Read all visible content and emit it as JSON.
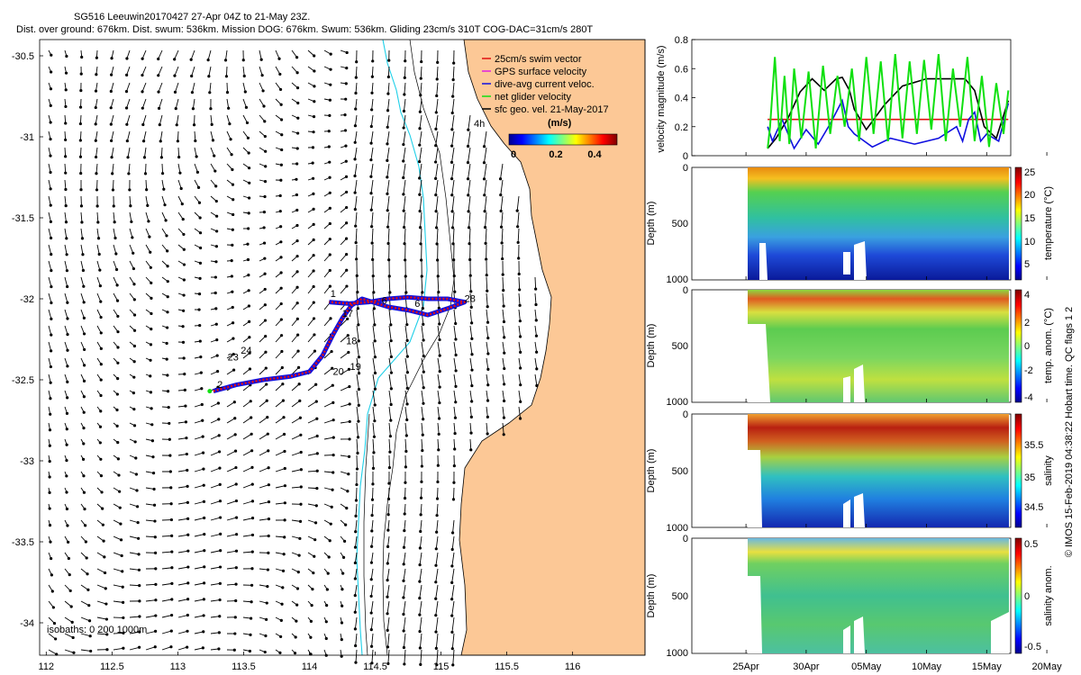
{
  "header": {
    "title": "SG516 Leeuwin20170427 27-Apr 04Z to 21-May 23Z.",
    "subtitle": "Dist. over ground: 676km. Dist. swum: 536km. Mission DOG: 676km. Swum: 536km. Gliding 23cm/s 310T COG-DAC=31cm/s 280T"
  },
  "credit": "© IMOS 15-Feb-2019 04:38:22 Hobart time. QC flags 1  2",
  "colors": {
    "land": "#fcc896",
    "swim_vector": "#e01010",
    "gps_velocity": "#e020e0",
    "dac": "#1010e0",
    "net_velocity": "#10e010",
    "isobath": "#1ecfe8",
    "coast": "#000000"
  },
  "chart_data": [
    {
      "id": "map",
      "type": "scatter",
      "title": "",
      "xlim": [
        111.95,
        116.55
      ],
      "ylim": [
        -34.2,
        -30.4
      ],
      "x_ticks": [
        "112",
        "112.5",
        "113",
        "113.5",
        "114",
        "114.5",
        "115",
        "115.5",
        "116"
      ],
      "y_ticks": [
        "-30.5",
        "-31",
        "-31.5",
        "-32",
        "-32.5",
        "-33",
        "-33.5",
        "-34"
      ],
      "legend": [
        "25cm/s swim vector",
        "GPS surface velocity",
        "dive-avg current veloc.",
        "net glider velocity",
        "sfc geo. vel. 21-May-2017"
      ],
      "colorbar": {
        "label": "(m/s)",
        "range": [
          0,
          0.5
        ],
        "tick_labels": [
          "0",
          "0.2",
          "0.4"
        ]
      },
      "annotations": [
        "4h",
        "isobaths: 0   200  1000m"
      ],
      "day_labels": [
        {
          "t": "17",
          "lon": 114.29,
          "lat": -32.11
        },
        {
          "t": "18",
          "lon": 114.32,
          "lat": -32.28
        },
        {
          "t": "19",
          "lon": 114.35,
          "lat": -32.44
        },
        {
          "t": "20",
          "lon": 114.22,
          "lat": -32.47
        },
        {
          "t": "23",
          "lon": 113.42,
          "lat": -32.38
        },
        {
          "t": "24",
          "lon": 113.52,
          "lat": -32.34
        },
        {
          "t": "28",
          "lon": 115.22,
          "lat": -32.02
        },
        {
          "t": "6",
          "lon": 114.82,
          "lat": -32.05
        },
        {
          "t": "6",
          "lon": 114.57,
          "lat": -32.03
        },
        {
          "t": "1",
          "lon": 114.18,
          "lat": -31.99
        },
        {
          "t": "2",
          "lon": 113.32,
          "lat": -32.55
        }
      ],
      "track": {
        "lon": [
          113.27,
          113.45,
          113.65,
          113.85,
          114.0,
          114.1,
          114.18,
          114.25,
          114.32,
          114.4,
          114.48,
          114.6,
          114.75,
          114.9,
          115.05,
          115.18,
          115.05,
          114.9,
          114.75,
          114.6,
          114.45,
          114.3,
          114.15
        ],
        "lat": [
          -32.57,
          -32.53,
          -32.5,
          -32.48,
          -32.45,
          -32.35,
          -32.22,
          -32.12,
          -32.04,
          -32.0,
          -32.02,
          -32.05,
          -32.07,
          -32.1,
          -32.06,
          -32.02,
          -32.0,
          -32.0,
          -31.99,
          -32.0,
          -32.02,
          -32.03,
          -32.02
        ]
      }
    },
    {
      "id": "velocity",
      "type": "line",
      "ylabel": "velocity magnitude (m/s)",
      "ylim": [
        0,
        0.8
      ],
      "y_ticks": [
        "0",
        "0.2",
        "0.4",
        "0.6",
        "0.8"
      ],
      "x_ticks": [
        "25Apr",
        "30Apr",
        "05May",
        "10May",
        "15May",
        "20May"
      ],
      "xlim": [
        20.5,
        47.0
      ],
      "series": [
        {
          "name": "25cm/s swim vector",
          "color": "#e01010",
          "x": [
            26.8,
            46.8
          ],
          "y": [
            0.25,
            0.25
          ]
        },
        {
          "name": "sfc geo. vel. 21-May-2017",
          "color": "#000000",
          "x": [
            26.8,
            27.5,
            28.5,
            29.5,
            30.5,
            31.5,
            32.5,
            33.0,
            33.6,
            34.0,
            35.0,
            36.5,
            38.0,
            40.0,
            42.0,
            43.2,
            44.0,
            44.8,
            45.8,
            46.8
          ],
          "y": [
            0.05,
            0.12,
            0.26,
            0.44,
            0.53,
            0.45,
            0.53,
            0.54,
            0.45,
            0.32,
            0.18,
            0.35,
            0.48,
            0.53,
            0.53,
            0.53,
            0.45,
            0.2,
            0.12,
            0.38
          ]
        },
        {
          "name": "dive-avg current veloc.",
          "color": "#1010e0",
          "x": [
            26.8,
            27.2,
            28.0,
            29.0,
            30.0,
            31.0,
            32.0,
            33.0,
            33.5,
            34.0,
            34.5,
            35.5,
            37.0,
            39.0,
            41.0,
            42.5,
            43.0,
            43.5,
            44.0,
            44.5,
            45.0,
            46.0,
            46.8
          ],
          "y": [
            0.2,
            0.1,
            0.25,
            0.05,
            0.18,
            0.08,
            0.22,
            0.38,
            0.2,
            0.15,
            0.12,
            0.06,
            0.12,
            0.08,
            0.12,
            0.2,
            0.1,
            0.25,
            0.3,
            0.1,
            0.15,
            0.1,
            0.36
          ]
        },
        {
          "name": "net glider velocity",
          "color": "#10e010",
          "x": [
            26.8,
            27.0,
            27.4,
            27.8,
            28.2,
            28.6,
            29.0,
            29.6,
            30.2,
            30.8,
            31.4,
            32.0,
            32.6,
            33.2,
            33.8,
            34.4,
            35.0,
            35.6,
            36.2,
            36.8,
            37.4,
            38.0,
            38.6,
            39.2,
            39.8,
            40.4,
            41.0,
            41.6,
            42.2,
            42.8,
            43.4,
            44.0,
            44.6,
            45.2,
            45.8,
            46.4,
            46.8
          ],
          "y": [
            0.05,
            0.2,
            0.68,
            0.1,
            0.55,
            0.08,
            0.6,
            0.12,
            0.58,
            0.05,
            0.62,
            0.15,
            0.55,
            0.2,
            0.6,
            0.1,
            0.68,
            0.15,
            0.65,
            0.1,
            0.7,
            0.12,
            0.65,
            0.15,
            0.66,
            0.18,
            0.7,
            0.1,
            0.6,
            0.2,
            0.68,
            0.1,
            0.55,
            0.06,
            0.5,
            0.15,
            0.45
          ]
        }
      ]
    },
    {
      "id": "temperature",
      "type": "heatmap",
      "ylabel": "Depth (m)",
      "ylim": [
        1000,
        0
      ],
      "y_ticks": [
        "0",
        "500",
        "1000"
      ],
      "cbar_label": "temperature (°C)",
      "cbar_range": [
        3,
        25
      ],
      "cbar_ticks": [
        "5",
        "10",
        "15",
        "20",
        "25"
      ]
    },
    {
      "id": "temp_anom",
      "type": "heatmap",
      "ylabel": "Depth (m)",
      "ylim": [
        1000,
        0
      ],
      "y_ticks": [
        "0",
        "500",
        "1000"
      ],
      "cbar_label": "temp. anom. (°C)",
      "cbar_range": [
        -4,
        4
      ],
      "cbar_ticks": [
        "4",
        "2",
        "0",
        "-2",
        "-4"
      ]
    },
    {
      "id": "salinity",
      "type": "heatmap",
      "ylabel": "Depth (m)",
      "ylim": [
        1000,
        0
      ],
      "y_ticks": [
        "0",
        "500",
        "1000"
      ],
      "cbar_label": "salinity",
      "cbar_range": [
        34.3,
        35.8
      ],
      "cbar_ticks": [
        "35.5",
        "35",
        "34.5"
      ]
    },
    {
      "id": "sal_anom",
      "type": "heatmap",
      "ylabel": "Depth (m)",
      "ylim": [
        1000,
        0
      ],
      "y_ticks": [
        "0",
        "500",
        "1000"
      ],
      "cbar_label": "salinity anom.",
      "cbar_range": [
        -0.5,
        0.5
      ],
      "cbar_ticks": [
        "0.5",
        "0",
        "-0.5"
      ],
      "x_ticks": [
        "25Apr",
        "30Apr",
        "05May",
        "10May",
        "15May",
        "20May"
      ]
    }
  ]
}
